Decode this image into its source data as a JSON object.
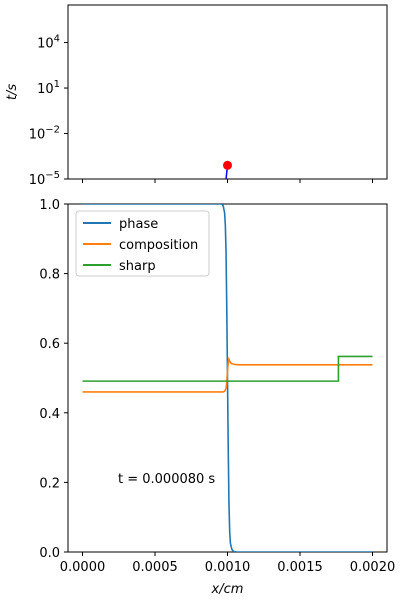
{
  "chart_data": [
    {
      "type": "line",
      "name": "time-history",
      "yscale": "log",
      "ylabel": "t/s",
      "yticks": [
        {
          "value": 1e-05,
          "base": "10",
          "exp": "−5"
        },
        {
          "value": 0.01,
          "base": "10",
          "exp": "−2"
        },
        {
          "value": 10,
          "base": "10",
          "exp": "1"
        },
        {
          "value": 10000,
          "base": "10",
          "exp": "4"
        }
      ],
      "ylim": [
        1e-05,
        3000000
      ],
      "xlim": [
        -0.0001,
        0.0021
      ],
      "series": [
        {
          "color": "#0000ff",
          "x": [
            0.00099,
            0.001
          ],
          "y": [
            1e-05,
            8e-05
          ]
        }
      ],
      "marker": {
        "color": "#ff0000",
        "x": 0.001,
        "y": 8e-05
      }
    },
    {
      "type": "line",
      "name": "profiles",
      "xlabel": "x/cm",
      "ylim": [
        0.0,
        1.0
      ],
      "xlim": [
        -0.0001,
        0.0021
      ],
      "xticks": [
        0.0,
        0.0005,
        0.001,
        0.0015,
        0.002
      ],
      "xtick_labels": [
        "0.0000",
        "0.0005",
        "0.0010",
        "0.0015",
        "0.0020"
      ],
      "yticks": [
        0.0,
        0.2,
        0.4,
        0.6,
        0.8,
        1.0
      ],
      "ytick_labels": [
        "0.0",
        "0.2",
        "0.4",
        "0.6",
        "0.8",
        "1.0"
      ],
      "legend_position": "top-left",
      "annotation": "t = 0.000080 s",
      "series": [
        {
          "name": "phase",
          "color": "#1f77b4",
          "x": [
            0.0,
            0.00096,
            0.00097,
            0.00098,
            0.000985,
            0.00099,
            0.000995,
            0.001,
            0.001005,
            0.00101,
            0.001015,
            0.00102,
            0.00103,
            0.00104,
            0.00106,
            0.002
          ],
          "y": [
            1.0,
            1.0,
            0.995,
            0.975,
            0.94,
            0.86,
            0.7,
            0.5,
            0.3,
            0.14,
            0.06,
            0.025,
            0.008,
            0.002,
            0.0,
            0.0
          ]
        },
        {
          "name": "composition",
          "color": "#ff7f0e",
          "x": [
            0.0,
            0.00097,
            0.00098,
            0.00099,
            0.000995,
            0.001,
            0.001005,
            0.00101,
            0.001015,
            0.00102,
            0.00103,
            0.00105,
            0.00108,
            0.002
          ],
          "y": [
            0.46,
            0.46,
            0.462,
            0.47,
            0.49,
            0.52,
            0.545,
            0.554,
            0.549,
            0.544,
            0.541,
            0.539,
            0.538,
            0.538
          ]
        },
        {
          "name": "sharp",
          "color": "#2ca02c",
          "x": [
            0.0,
            0.001765,
            0.001765,
            0.002
          ],
          "y": [
            0.491,
            0.491,
            0.562,
            0.562
          ]
        }
      ]
    }
  ]
}
